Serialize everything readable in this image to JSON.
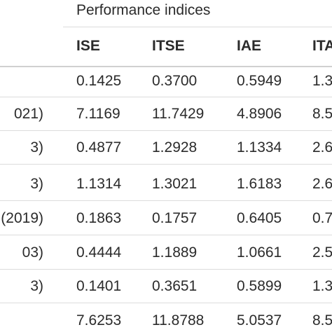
{
  "table": {
    "group_header": "Performance indices",
    "columns": [
      "ISE",
      "ITSE",
      "IAE",
      "ITA"
    ],
    "rows": [
      {
        "method": "",
        "ise": "0.1425",
        "itse": "0.3700",
        "iae": "0.5949",
        "itae": "1.3"
      },
      {
        "method": "021)",
        "ise": "7.1169",
        "itse": "11.7429",
        "iae": "4.8906",
        "itae": "8.5"
      },
      {
        "method": "3)",
        "ise": "0.4877",
        "itse": "1.2928",
        "iae": "1.1334",
        "itae": "2.6"
      },
      {
        "method": "3)",
        "ise": "1.1314",
        "itse": "1.3021",
        "iae": "1.6183",
        "itae": "2.6"
      },
      {
        "method": "(2019)",
        "ise": "0.1863",
        "itse": "0.1757",
        "iae": "0.6405",
        "itae": "0.7"
      },
      {
        "method": "03)",
        "ise": "0.4444",
        "itse": "1.1889",
        "iae": "1.0661",
        "itae": "2.5"
      },
      {
        "method": "3)",
        "ise": "0.1401",
        "itse": "0.3651",
        "iae": "0.5899",
        "itae": "1.3"
      },
      {
        "method": "",
        "ise": "7.6253",
        "itse": "11.8788",
        "iae": "5.0537",
        "itae": "8.5"
      }
    ]
  }
}
